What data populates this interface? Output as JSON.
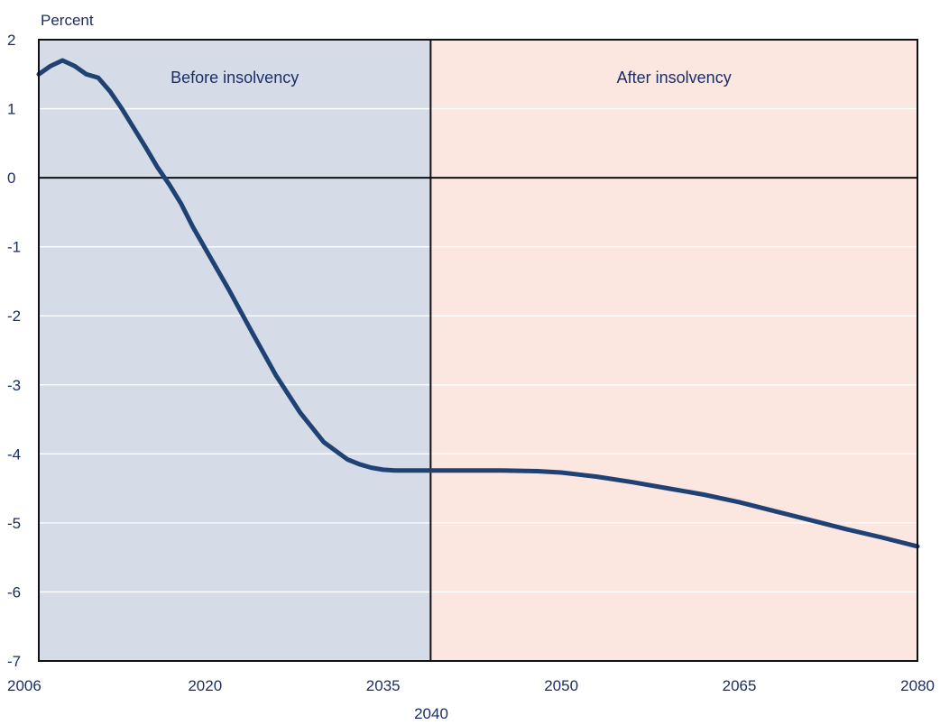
{
  "chart_data": {
    "type": "line",
    "ylabel": "Percent",
    "xlim": [
      2006,
      2080
    ],
    "ylim": [
      -7,
      2
    ],
    "grid": true,
    "x_ticks": [
      2006,
      2020,
      2035,
      2050,
      2065,
      2080
    ],
    "x_tick_labels": [
      "2006",
      "2020",
      "2035",
      "2050",
      "2065",
      "2080"
    ],
    "marker_x": 2039,
    "marker_label": "2040",
    "y_ticks": [
      2,
      1,
      0,
      -1,
      -2,
      -3,
      -4,
      -5,
      -6,
      -7
    ],
    "y_tick_labels": [
      "2",
      "1",
      "0",
      "-1",
      "-2",
      "-3",
      "-4",
      "-5",
      "-6",
      "-7"
    ],
    "regions": [
      {
        "label": "Before insolvency",
        "x_range": [
          2006,
          2039
        ],
        "color": "#d5dce8"
      },
      {
        "label": "After insolvency",
        "x_range": [
          2039,
          2080
        ],
        "color": "#fce6e0"
      }
    ],
    "series": [
      {
        "color": "#1f4173",
        "x": [
          2006,
          2007,
          2008,
          2009,
          2010,
          2011,
          2012,
          2013,
          2014,
          2015,
          2016,
          2017,
          2018,
          2019,
          2020,
          2022,
          2024,
          2026,
          2028,
          2030,
          2032,
          2033,
          2034,
          2035,
          2036,
          2037,
          2038,
          2039,
          2040,
          2045,
          2048,
          2050,
          2053,
          2056,
          2059,
          2062,
          2065,
          2068,
          2071,
          2074,
          2077,
          2080
        ],
        "y": [
          1.5,
          1.62,
          1.7,
          1.62,
          1.5,
          1.45,
          1.25,
          1.0,
          0.72,
          0.44,
          0.15,
          -0.1,
          -0.38,
          -0.72,
          -1.02,
          -1.62,
          -2.25,
          -2.87,
          -3.4,
          -3.83,
          -4.08,
          -4.15,
          -4.2,
          -4.23,
          -4.24,
          -4.24,
          -4.24,
          -4.24,
          -4.24,
          -4.24,
          -4.25,
          -4.27,
          -4.33,
          -4.41,
          -4.5,
          -4.59,
          -4.7,
          -4.83,
          -4.96,
          -5.09,
          -5.21,
          -5.34
        ]
      }
    ]
  }
}
